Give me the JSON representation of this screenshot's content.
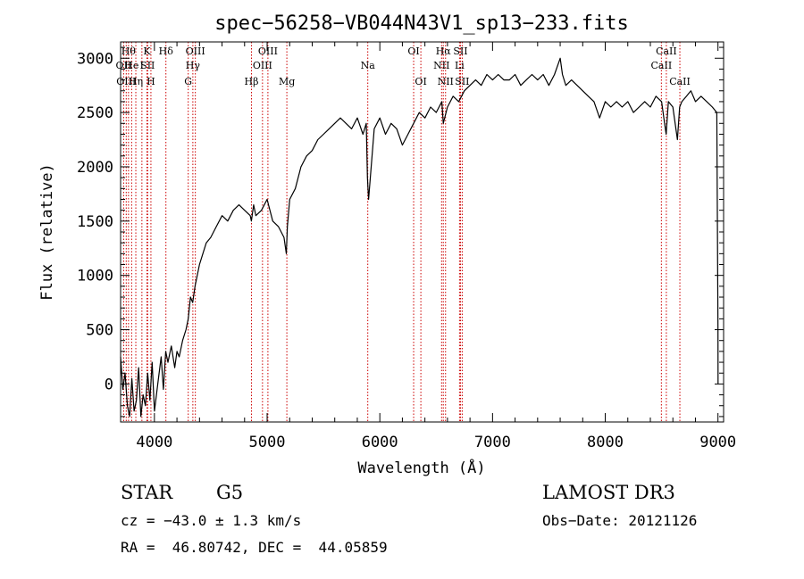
{
  "chart_data": {
    "type": "line",
    "title": "spec−56258−VB044N43V1_sp13−233.fits",
    "xlabel": "Wavelength (Å)",
    "ylabel": "Flux (relative)",
    "xlim": [
      3700,
      9050
    ],
    "ylim": [
      -350,
      3150
    ],
    "x_ticks": [
      4000,
      5000,
      6000,
      7000,
      8000,
      9000
    ],
    "y_ticks": [
      0,
      500,
      1000,
      1500,
      2000,
      2500,
      3000
    ],
    "series": [
      {
        "name": "flux",
        "x": [
          3700,
          3720,
          3740,
          3760,
          3780,
          3800,
          3820,
          3840,
          3860,
          3880,
          3900,
          3920,
          3940,
          3960,
          3980,
          4000,
          4030,
          4060,
          4080,
          4100,
          4120,
          4150,
          4180,
          4200,
          4220,
          4250,
          4280,
          4300,
          4320,
          4340,
          4360,
          4380,
          4400,
          4430,
          4460,
          4500,
          4550,
          4600,
          4650,
          4700,
          4750,
          4800,
          4850,
          4860,
          4880,
          4900,
          4950,
          5000,
          5050,
          5100,
          5150,
          5170,
          5180,
          5200,
          5250,
          5300,
          5350,
          5400,
          5450,
          5500,
          5550,
          5600,
          5650,
          5700,
          5750,
          5800,
          5850,
          5880,
          5890,
          5900,
          5950,
          6000,
          6050,
          6100,
          6150,
          6200,
          6250,
          6300,
          6350,
          6400,
          6450,
          6500,
          6550,
          6563,
          6600,
          6650,
          6700,
          6750,
          6800,
          6850,
          6900,
          6950,
          7000,
          7050,
          7100,
          7150,
          7200,
          7250,
          7300,
          7350,
          7400,
          7450,
          7500,
          7550,
          7600,
          7620,
          7650,
          7700,
          7750,
          7800,
          7850,
          7900,
          7950,
          8000,
          8050,
          8100,
          8150,
          8200,
          8250,
          8300,
          8350,
          8400,
          8450,
          8500,
          8520,
          8540,
          8560,
          8600,
          8640,
          8660,
          8680,
          8720,
          8760,
          8800,
          8850,
          8900,
          8950,
          8990,
          9000,
          9001
        ],
        "values": [
          250,
          -50,
          100,
          -200,
          -300,
          50,
          -250,
          -150,
          150,
          -300,
          -100,
          -200,
          100,
          -150,
          200,
          -250,
          0,
          250,
          -50,
          300,
          200,
          350,
          150,
          300,
          250,
          400,
          500,
          600,
          800,
          750,
          900,
          1000,
          1100,
          1200,
          1300,
          1350,
          1450,
          1550,
          1500,
          1600,
          1650,
          1600,
          1550,
          1500,
          1650,
          1550,
          1600,
          1700,
          1500,
          1450,
          1350,
          1200,
          1450,
          1700,
          1800,
          2000,
          2100,
          2150,
          2250,
          2300,
          2350,
          2400,
          2450,
          2400,
          2350,
          2450,
          2300,
          2400,
          1900,
          1700,
          2350,
          2450,
          2300,
          2400,
          2350,
          2200,
          2300,
          2400,
          2500,
          2450,
          2550,
          2500,
          2600,
          2400,
          2550,
          2650,
          2600,
          2700,
          2750,
          2800,
          2750,
          2850,
          2800,
          2850,
          2800,
          2800,
          2850,
          2750,
          2800,
          2850,
          2800,
          2850,
          2750,
          2850,
          3000,
          2850,
          2750,
          2800,
          2750,
          2700,
          2650,
          2600,
          2450,
          2600,
          2550,
          2600,
          2550,
          2600,
          2500,
          2550,
          2600,
          2550,
          2650,
          2600,
          2450,
          2300,
          2600,
          2550,
          2250,
          2550,
          2600,
          2650,
          2700,
          2600,
          2650,
          2600,
          2550,
          2500,
          500,
          0
        ]
      }
    ],
    "lines": [
      {
        "wavelength": 3727,
        "label": "OII",
        "row": 1
      },
      {
        "wavelength": 3750,
        "label": "OIII",
        "row": 2
      },
      {
        "wavelength": 3770,
        "label": "Hθ",
        "row": 0
      },
      {
        "wavelength": 3798,
        "label": "He",
        "row": 1
      },
      {
        "wavelength": 3835,
        "label": "Hη",
        "row": 2
      },
      {
        "wavelength": 3889,
        "label": "I",
        "row": 1
      },
      {
        "wavelength": 3934,
        "label": "K",
        "row": 0
      },
      {
        "wavelength": 3940,
        "label": "SII",
        "row": 1
      },
      {
        "wavelength": 3969,
        "label": "H",
        "row": 2
      },
      {
        "wavelength": 4102,
        "label": "Hδ",
        "row": 0
      },
      {
        "wavelength": 4300,
        "label": "G",
        "row": 2
      },
      {
        "wavelength": 4341,
        "label": "Hγ",
        "row": 1
      },
      {
        "wavelength": 4363,
        "label": "OIII",
        "row": 0
      },
      {
        "wavelength": 4861,
        "label": "Hβ",
        "row": 2
      },
      {
        "wavelength": 4959,
        "label": "OIII",
        "row": 1
      },
      {
        "wavelength": 5007,
        "label": "OIII",
        "row": 0
      },
      {
        "wavelength": 5175,
        "label": "Mg",
        "row": 2
      },
      {
        "wavelength": 5893,
        "label": "Na",
        "row": 1
      },
      {
        "wavelength": 6300,
        "label": "OI",
        "row": 0
      },
      {
        "wavelength": 6364,
        "label": "OI",
        "row": 2
      },
      {
        "wavelength": 6548,
        "label": "NII",
        "row": 1
      },
      {
        "wavelength": 6563,
        "label": "Hα",
        "row": 0
      },
      {
        "wavelength": 6583,
        "label": "NII",
        "row": 2
      },
      {
        "wavelength": 6707,
        "label": "Li",
        "row": 1
      },
      {
        "wavelength": 6716,
        "label": "SII",
        "row": 0
      },
      {
        "wavelength": 6731,
        "label": "SII",
        "row": 2
      },
      {
        "wavelength": 8498,
        "label": "CaII",
        "row": 1
      },
      {
        "wavelength": 8542,
        "label": "CaII",
        "row": 0
      },
      {
        "wavelength": 8662,
        "label": "CaII",
        "row": 2
      }
    ],
    "line_color": "#cc0000"
  },
  "info": {
    "class": "STAR",
    "subclass": "G5",
    "cz": "cz = −43.0 ± 1.3 km/s",
    "coords": "RA =  46.80742, DEC =  44.05859",
    "survey": "LAMOST DR3",
    "obs_date": "Obs−Date: 20121126"
  }
}
